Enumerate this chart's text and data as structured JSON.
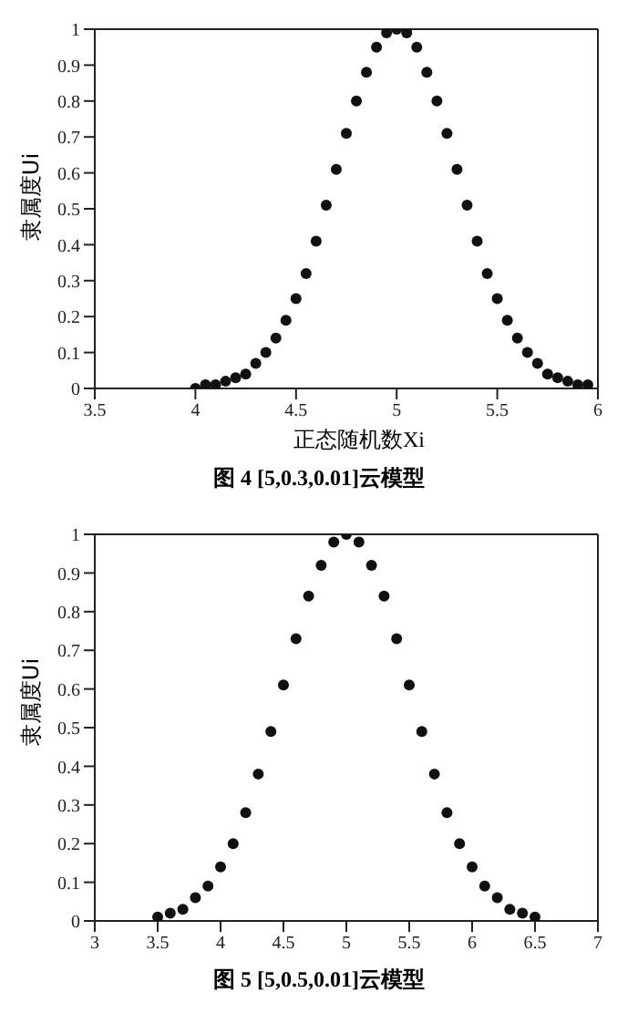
{
  "chart_data": [
    {
      "type": "scatter",
      "title": "图 4  [5,0.3,0.01]云模型",
      "xlabel": "正态随机数Xi",
      "ylabel": "隶属度Ui",
      "marker": "circle",
      "color": "#111111",
      "xlim": [
        3.5,
        6
      ],
      "xticks": [
        3.5,
        4,
        4.5,
        5,
        5.5,
        6
      ],
      "ylim": [
        0,
        1
      ],
      "yticks": [
        0,
        0.1,
        0.2,
        0.3,
        0.4,
        0.5,
        0.6,
        0.7,
        0.8,
        0.9,
        1
      ],
      "x": [
        4.0,
        4.05,
        4.1,
        4.15,
        4.2,
        4.25,
        4.3,
        4.35,
        4.4,
        4.45,
        4.5,
        4.55,
        4.6,
        4.65,
        4.7,
        4.75,
        4.8,
        4.85,
        4.9,
        4.95,
        5.0,
        5.05,
        5.1,
        5.15,
        5.2,
        5.25,
        5.3,
        5.35,
        5.4,
        5.45,
        5.5,
        5.55,
        5.6,
        5.65,
        5.7,
        5.75,
        5.8,
        5.85,
        5.9,
        5.95
      ],
      "values": [
        0.0,
        0.01,
        0.01,
        0.02,
        0.03,
        0.04,
        0.07,
        0.1,
        0.14,
        0.19,
        0.25,
        0.32,
        0.41,
        0.51,
        0.61,
        0.71,
        0.8,
        0.88,
        0.95,
        0.99,
        1.0,
        0.99,
        0.95,
        0.88,
        0.8,
        0.71,
        0.61,
        0.51,
        0.41,
        0.32,
        0.25,
        0.19,
        0.14,
        0.1,
        0.07,
        0.04,
        0.03,
        0.02,
        0.01,
        0.01
      ]
    },
    {
      "type": "scatter",
      "title": "图 5  [5,0.5,0.01]云模型",
      "ylabel": "隶属度Ui",
      "marker": "circle",
      "color": "#111111",
      "xlim": [
        3,
        7
      ],
      "xticks": [
        3,
        3.5,
        4,
        4.5,
        5,
        5.5,
        6,
        6.5,
        7
      ],
      "ylim": [
        0,
        1
      ],
      "yticks": [
        0,
        0.1,
        0.2,
        0.3,
        0.4,
        0.5,
        0.6,
        0.7,
        0.8,
        0.9,
        1
      ],
      "x": [
        3.5,
        3.6,
        3.7,
        3.8,
        3.9,
        4.0,
        4.1,
        4.2,
        4.3,
        4.4,
        4.5,
        4.6,
        4.7,
        4.8,
        4.9,
        5.0,
        5.1,
        5.2,
        5.3,
        5.4,
        5.5,
        5.6,
        5.7,
        5.8,
        5.9,
        6.0,
        6.1,
        6.2,
        6.3,
        6.4,
        6.5
      ],
      "values": [
        0.01,
        0.02,
        0.03,
        0.06,
        0.09,
        0.14,
        0.2,
        0.28,
        0.38,
        0.49,
        0.61,
        0.73,
        0.84,
        0.92,
        0.98,
        1.0,
        0.98,
        0.92,
        0.84,
        0.73,
        0.61,
        0.49,
        0.38,
        0.28,
        0.2,
        0.14,
        0.09,
        0.06,
        0.03,
        0.02,
        0.01
      ]
    }
  ]
}
